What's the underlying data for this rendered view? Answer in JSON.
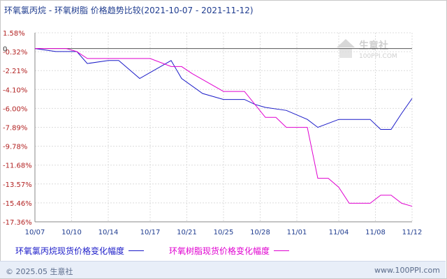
{
  "title": "环氧氯丙烷 - 环氧树脂 价格趋势比较(2021-10-07 - 2021-11-12)",
  "watermark": {
    "name": "生意社",
    "url": "100PPI.COM"
  },
  "footer": {
    "copyright": "© 2025.05 生意社",
    "site": "www.100PPI.com"
  },
  "colors": {
    "series_blue": "#1a1ac8",
    "series_magenta": "#e000d0",
    "title": "#1f3c8f",
    "axis_text": "#b22222"
  },
  "chart_data": {
    "type": "line",
    "title": "环氧氯丙烷 - 环氧树脂 价格趋势比较(2021-10-07 - 2021-11-12)",
    "x_tick_labels": [
      "10/07",
      "10/10",
      "10/14",
      "10/17",
      "10/21",
      "10/25",
      "10/28",
      "11/01",
      "11/04",
      "11/08",
      "11/12"
    ],
    "x_tick_positions": [
      0,
      3.5,
      7,
      11,
      14.5,
      18,
      21.5,
      25,
      29,
      32.5,
      36
    ],
    "y_tick_labels": [
      "1.58%",
      "-0.32%",
      "-2.21%",
      "-4.10%",
      "-6.00%",
      "-7.89%",
      "-9.78%",
      "-11.68%",
      "-13.57%",
      "-15.46%",
      "-17.36%"
    ],
    "ylim": [
      -17.36,
      1.58
    ],
    "zero_label": "0",
    "grid": true,
    "legend_position": "bottom",
    "series": [
      {
        "name": "环氧氯丙烷现货价格变化幅度",
        "x": [
          0,
          2,
          4,
          5,
          7,
          8,
          10,
          13,
          14,
          16,
          18,
          20,
          21,
          22,
          24,
          26,
          27,
          29,
          30,
          32,
          33,
          34,
          35,
          36
        ],
        "y": [
          0,
          -0.3,
          -0.3,
          -1.5,
          -1.2,
          -1.2,
          -3.0,
          -1.2,
          -3.0,
          -4.5,
          -5.1,
          -5.1,
          -5.6,
          -5.9,
          -6.2,
          -7.1,
          -7.9,
          -7.1,
          -7.1,
          -7.1,
          -8.1,
          -8.1,
          -6.5,
          -5.0
        ]
      },
      {
        "name": "环氧树脂现货价格变化幅度",
        "x": [
          0,
          3,
          4,
          5,
          7,
          8,
          10,
          11,
          13,
          14,
          15,
          18,
          19,
          20,
          22,
          23,
          24,
          25,
          26,
          27,
          28,
          29,
          30,
          31,
          32,
          33,
          34,
          35,
          36
        ],
        "y": [
          0,
          0,
          -0.3,
          -1.0,
          -1.0,
          -1.0,
          -1.0,
          -1.0,
          -1.8,
          -1.8,
          -2.5,
          -4.3,
          -4.3,
          -4.3,
          -6.9,
          -6.9,
          -7.9,
          -7.9,
          -7.9,
          -13.0,
          -13.0,
          -13.9,
          -15.5,
          -15.5,
          -15.5,
          -14.7,
          -14.7,
          -15.5,
          -15.8
        ]
      }
    ]
  }
}
